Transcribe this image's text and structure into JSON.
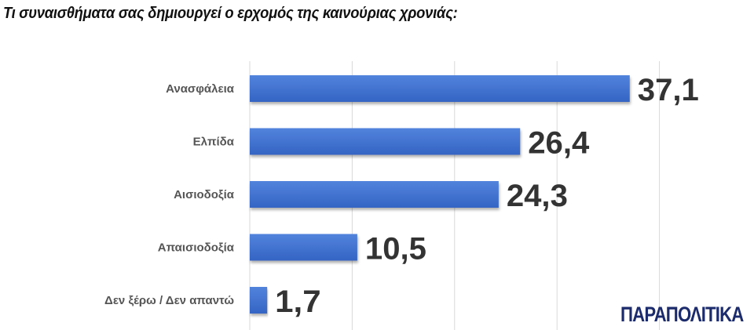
{
  "chart_data": {
    "type": "bar",
    "orientation": "horizontal",
    "title": "Τι συναισθήματα σας δημιουργεί ο ερχομός της καινούριας χρονιάς:",
    "categories": [
      "Ανασφάλεια",
      "Ελπίδα",
      "Αισιοδοξία",
      "Απαισιοδοξία",
      "Δεν ξέρω / Δεν απαντώ"
    ],
    "values": [
      37.1,
      26.4,
      24.3,
      10.5,
      1.7
    ],
    "value_labels": [
      "37,1",
      "26,4",
      "24,3",
      "10,5",
      "1,7"
    ],
    "xlabel": "",
    "ylabel": "",
    "xlim": [
      0,
      50
    ],
    "gridlines": [
      0,
      10,
      20,
      30,
      40
    ],
    "grid": true,
    "bar_color": "#3f6fcf"
  },
  "logo": "ΠΑΡΑΠΟΛΙΤΙΚΑ"
}
